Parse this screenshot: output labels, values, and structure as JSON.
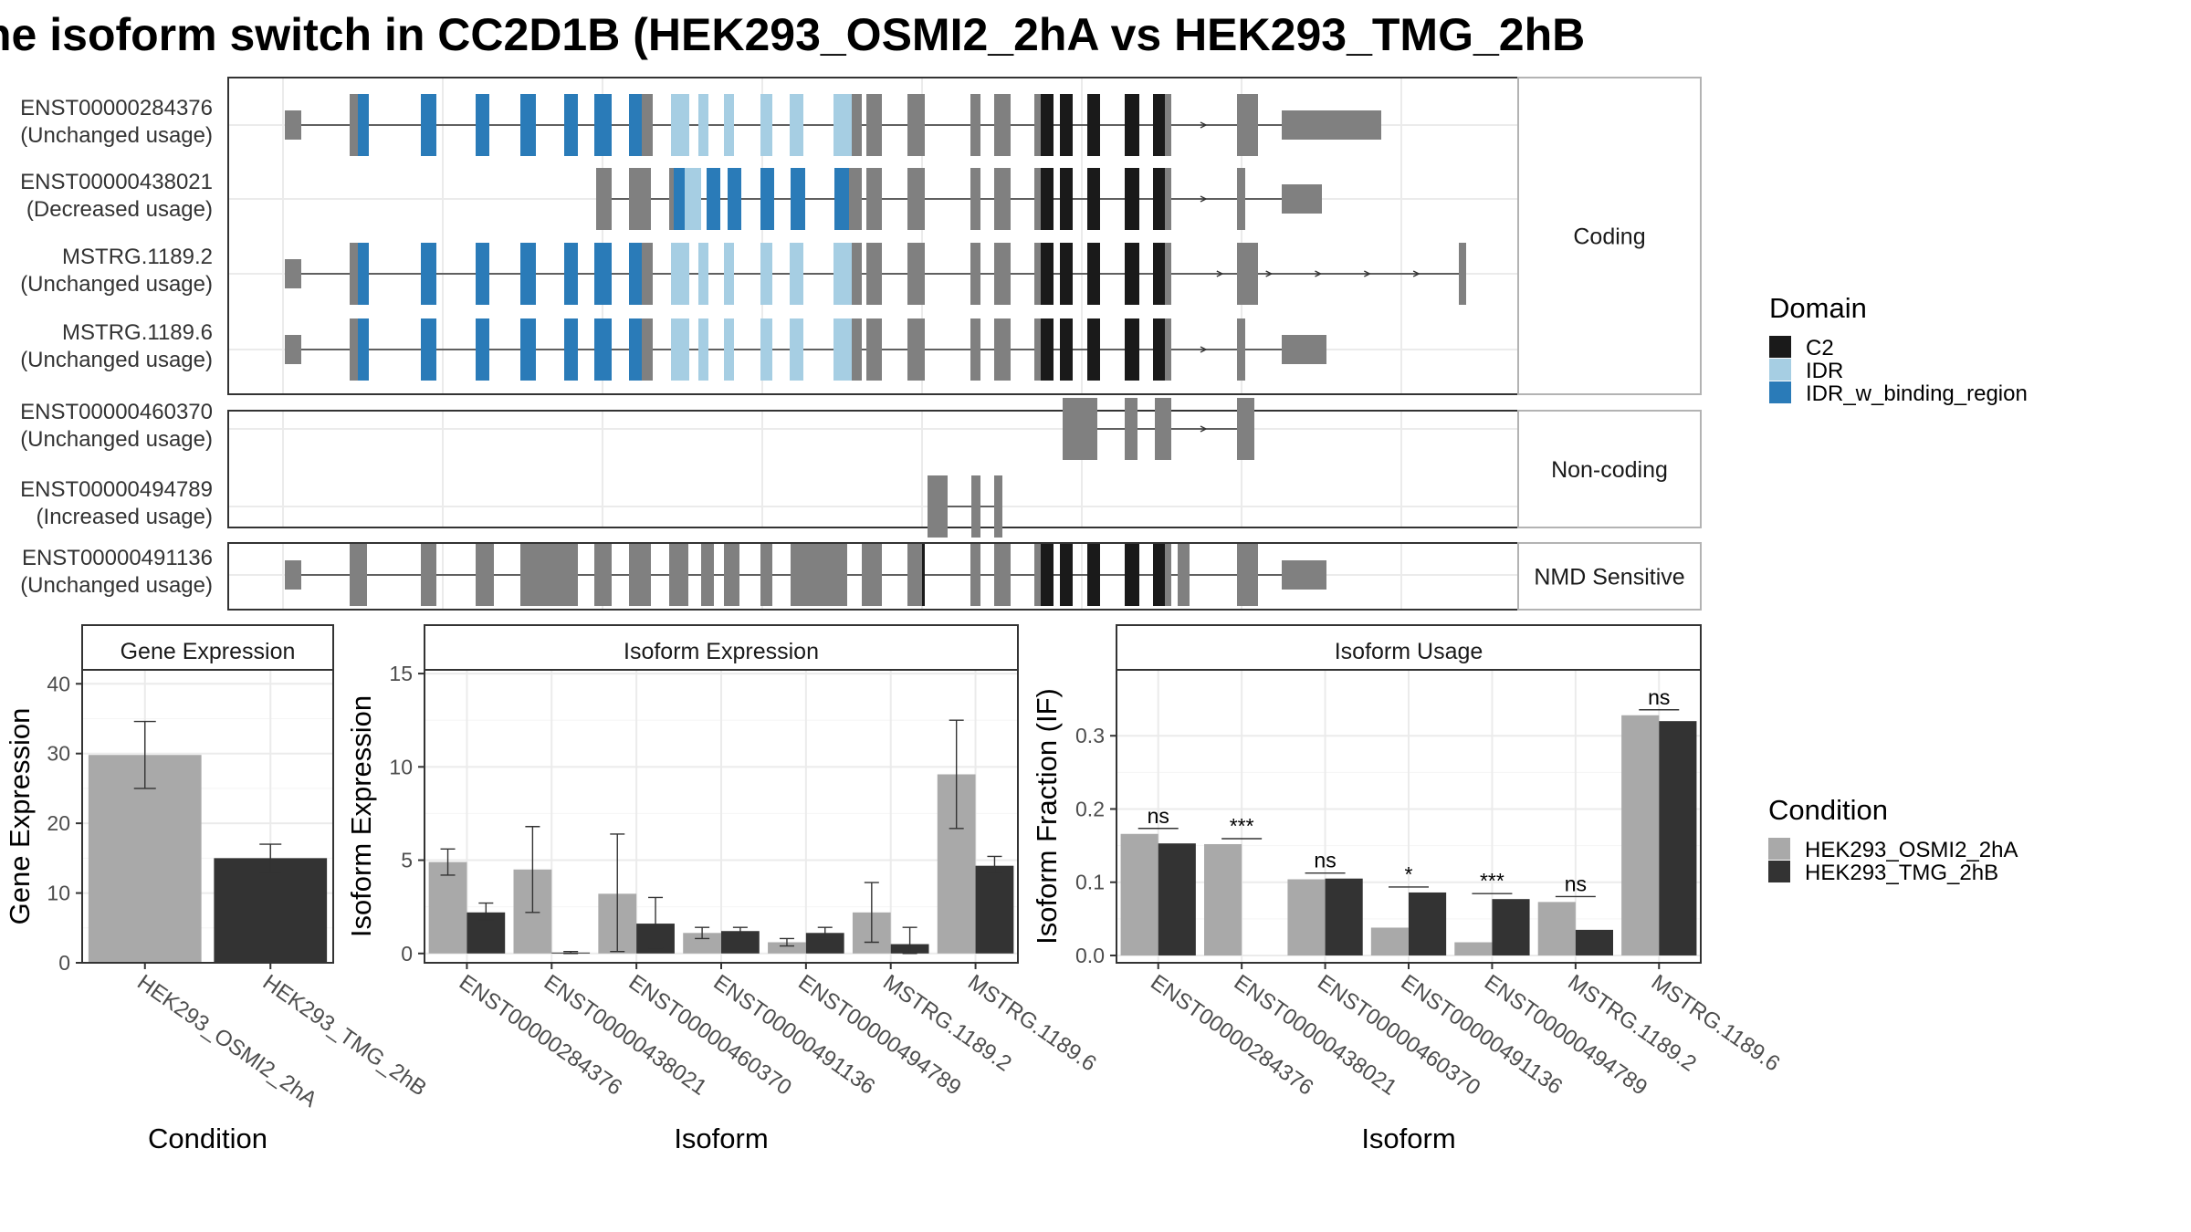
{
  "title": "ne isoform switch in CC2D1B (HEK293_OSMI2_2hA vs HEK293_TMG_2hB",
  "colors": {
    "exon": "#808080",
    "C2": "#1a1a1a",
    "IDR": "#a6cee3",
    "IDR_w_binding_region": "#2a7bb8",
    "cond1": "#a9a9a9",
    "cond2": "#333333"
  },
  "isoform_panel": {
    "groups": [
      {
        "label": "Coding",
        "isoforms": [
          {
            "id": "ENST00000284376",
            "usage": "(Unchanged usage)"
          },
          {
            "id": "ENST00000438021",
            "usage": "(Decreased usage)"
          },
          {
            "id": "MSTRG.1189.2",
            "usage": "(Unchanged usage)"
          },
          {
            "id": "MSTRG.1189.6",
            "usage": "(Unchanged usage)"
          }
        ]
      },
      {
        "label": "Non-coding",
        "isoforms": [
          {
            "id": "ENST00000460370",
            "usage": "(Unchanged usage)"
          },
          {
            "id": "ENST00000494789",
            "usage": "(Increased usage)"
          }
        ]
      },
      {
        "label": "NMD Sensitive",
        "isoforms": [
          {
            "id": "ENST00000491136",
            "usage": "(Unchanged usage)"
          }
        ]
      }
    ]
  },
  "domain_legend": {
    "title": "Domain",
    "items": [
      {
        "label": "C2",
        "color": "#1a1a1a"
      },
      {
        "label": "IDR",
        "color": "#a6cee3"
      },
      {
        "label": "IDR_w_binding_region",
        "color": "#2a7bb8"
      }
    ]
  },
  "condition_legend": {
    "title": "Condition",
    "items": [
      {
        "label": "HEK293_OSMI2_2hA",
        "color": "#a9a9a9"
      },
      {
        "label": "HEK293_TMG_2hB",
        "color": "#333333"
      }
    ]
  },
  "chart_data": [
    {
      "type": "bar",
      "title": "Gene Expression",
      "xlabel": "Condition",
      "ylabel": "Gene Expression",
      "ylim": [
        0,
        42
      ],
      "yticks": [
        0,
        10,
        20,
        30,
        40
      ],
      "grid": true,
      "categories": [
        "HEK293_OSMI2_2hA",
        "HEK293_TMG_2hB"
      ],
      "values": [
        29.8,
        15.0
      ],
      "error_low": [
        25.0,
        13.0
      ],
      "error_high": [
        34.6,
        17.0
      ]
    },
    {
      "type": "bar",
      "title": "Isoform Expression",
      "xlabel": "Isoform",
      "ylabel": "Isoform Expression",
      "ylim": [
        -0.5,
        15.2
      ],
      "yticks": [
        0,
        5,
        10,
        15
      ],
      "grid": true,
      "categories": [
        "ENST00000284376",
        "ENST00000438021",
        "ENST00000460370",
        "ENST00000491136",
        "ENST00000494789",
        "MSTRG.1189.2",
        "MSTRG.1189.6"
      ],
      "series": [
        {
          "name": "HEK293_OSMI2_2hA",
          "values": [
            4.9,
            4.5,
            3.2,
            1.1,
            0.6,
            2.2,
            9.6
          ],
          "error_low": [
            4.2,
            2.2,
            0.1,
            0.8,
            0.4,
            0.6,
            6.7
          ],
          "error_high": [
            5.6,
            6.8,
            6.4,
            1.4,
            0.8,
            3.8,
            12.5
          ]
        },
        {
          "name": "HEK293_TMG_2hB",
          "values": [
            2.2,
            0.05,
            1.6,
            1.2,
            1.1,
            0.5,
            4.7
          ],
          "error_low": [
            1.8,
            0.0,
            0.3,
            1.0,
            0.8,
            0.0,
            4.3
          ],
          "error_high": [
            2.7,
            0.1,
            3.0,
            1.4,
            1.4,
            1.4,
            5.2
          ]
        }
      ]
    },
    {
      "type": "bar",
      "title": "Isoform Usage",
      "xlabel": "Isoform",
      "ylabel": "Isoform Fraction (IF)",
      "ylim": [
        -0.01,
        0.39
      ],
      "yticks": [
        0.0,
        0.1,
        0.2,
        0.3
      ],
      "grid": true,
      "categories": [
        "ENST00000284376",
        "ENST00000438021",
        "ENST00000460370",
        "ENST00000491136",
        "ENST00000494789",
        "MSTRG.1189.2",
        "MSTRG.1189.6"
      ],
      "series": [
        {
          "name": "HEK293_OSMI2_2hA",
          "values": [
            0.166,
            0.152,
            0.104,
            0.038,
            0.018,
            0.073,
            0.328
          ]
        },
        {
          "name": "HEK293_TMG_2hB",
          "values": [
            0.153,
            0.0,
            0.105,
            0.086,
            0.077,
            0.035,
            0.32
          ]
        }
      ],
      "significance": [
        "ns",
        "***",
        "ns",
        "*",
        "***",
        "ns",
        "ns"
      ]
    }
  ]
}
